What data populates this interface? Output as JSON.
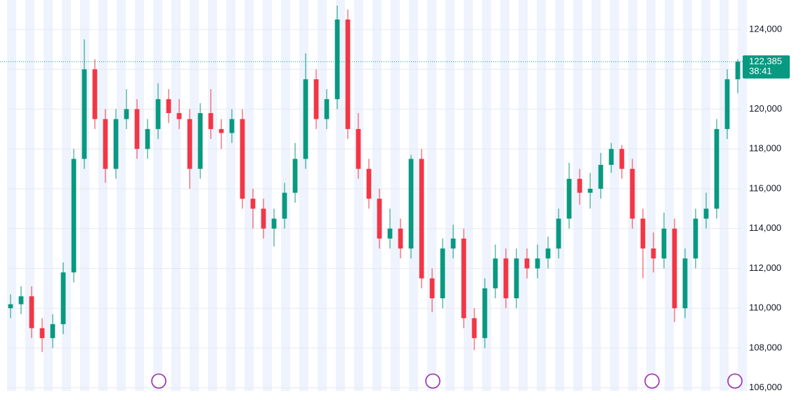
{
  "chart_data": {
    "type": "candlestick",
    "up_color": "#089981",
    "down_color": "#f23645",
    "open": [
      110000,
      110200,
      110600,
      109000,
      108500,
      109200,
      111800,
      117500,
      122000,
      119500,
      117000,
      119500,
      120000,
      118000,
      119000,
      120500,
      119800,
      119500,
      117000,
      119800,
      119000,
      118800,
      119500,
      115500,
      115000,
      114000,
      114500,
      115800,
      117500,
      121500,
      119500,
      120500,
      124500,
      119000,
      117000,
      115500,
      113500,
      114000,
      113000,
      117500,
      111500,
      110500,
      113000,
      113500,
      109500,
      108500,
      111000,
      112500,
      110500,
      112500,
      112000,
      112500,
      113000,
      114500,
      116500,
      115800,
      116000,
      117200,
      118000,
      117000,
      114500,
      113000,
      112500,
      114000,
      110000,
      112500,
      114500,
      115000,
      119000,
      121500
    ],
    "high": [
      110700,
      111100,
      111100,
      109500,
      109700,
      112300,
      118000,
      123500,
      122500,
      120000,
      120000,
      121000,
      120500,
      119500,
      121300,
      121000,
      120500,
      120000,
      120300,
      121000,
      119500,
      120000,
      120000,
      116000,
      115500,
      115000,
      116300,
      118300,
      122800,
      122000,
      121000,
      125200,
      125000,
      119800,
      117500,
      116000,
      115000,
      114500,
      117700,
      118000,
      112000,
      113500,
      114200,
      114000,
      110000,
      111500,
      113200,
      113000,
      113000,
      113000,
      113200,
      113600,
      115000,
      117300,
      117000,
      116800,
      117800,
      118300,
      118200,
      117500,
      115000,
      113800,
      114800,
      114500,
      113000,
      115000,
      115800,
      119500,
      122000,
      122500
    ],
    "low": [
      109500,
      109700,
      108500,
      107800,
      108000,
      108700,
      111300,
      117000,
      119000,
      116300,
      116500,
      119000,
      117500,
      117500,
      118500,
      119300,
      119000,
      116000,
      116500,
      118500,
      118000,
      118300,
      115000,
      114000,
      113500,
      113100,
      114000,
      115300,
      117000,
      119000,
      119000,
      120000,
      118500,
      116500,
      115000,
      113000,
      113000,
      112500,
      112500,
      111000,
      109800,
      110000,
      112500,
      109000,
      107900,
      108000,
      110500,
      110000,
      110000,
      111500,
      111500,
      112000,
      112500,
      114000,
      115200,
      115000,
      115500,
      116800,
      116500,
      114000,
      111500,
      111800,
      112000,
      109300,
      109500,
      112000,
      114000,
      114500,
      118500,
      120800
    ],
    "close": [
      110200,
      110600,
      109000,
      108500,
      109200,
      111800,
      117500,
      122000,
      119500,
      117000,
      119500,
      120000,
      118000,
      119000,
      120500,
      119800,
      119500,
      117000,
      119800,
      119000,
      118800,
      119500,
      115500,
      115000,
      114000,
      114500,
      115800,
      117500,
      121500,
      119500,
      120500,
      124500,
      119000,
      117000,
      115500,
      113500,
      114000,
      113000,
      117500,
      111500,
      110500,
      113000,
      113500,
      109500,
      108500,
      111000,
      112500,
      110500,
      112500,
      112000,
      112500,
      113000,
      114500,
      116500,
      115800,
      116000,
      117200,
      118000,
      117000,
      114500,
      113000,
      112500,
      114000,
      110000,
      112500,
      114500,
      115000,
      119000,
      121500,
      122385
    ],
    "ylim": [
      105850,
      125480
    ],
    "yticks": [
      {
        "value": 106000,
        "label": "106,000"
      },
      {
        "value": 108000,
        "label": "108,000"
      },
      {
        "value": 110000,
        "label": "110,000"
      },
      {
        "value": 112000,
        "label": "112,000"
      },
      {
        "value": 114000,
        "label": "114,000"
      },
      {
        "value": 116000,
        "label": "116,000"
      },
      {
        "value": 118000,
        "label": "118,000"
      },
      {
        "value": 120000,
        "label": "120,000"
      },
      {
        "value": 122000,
        "label": "122,000"
      },
      {
        "value": 124000,
        "label": "124,000"
      }
    ],
    "grid": true,
    "price_tag": {
      "value": 122385,
      "label": "122,385"
    },
    "countdown": "38:41"
  }
}
